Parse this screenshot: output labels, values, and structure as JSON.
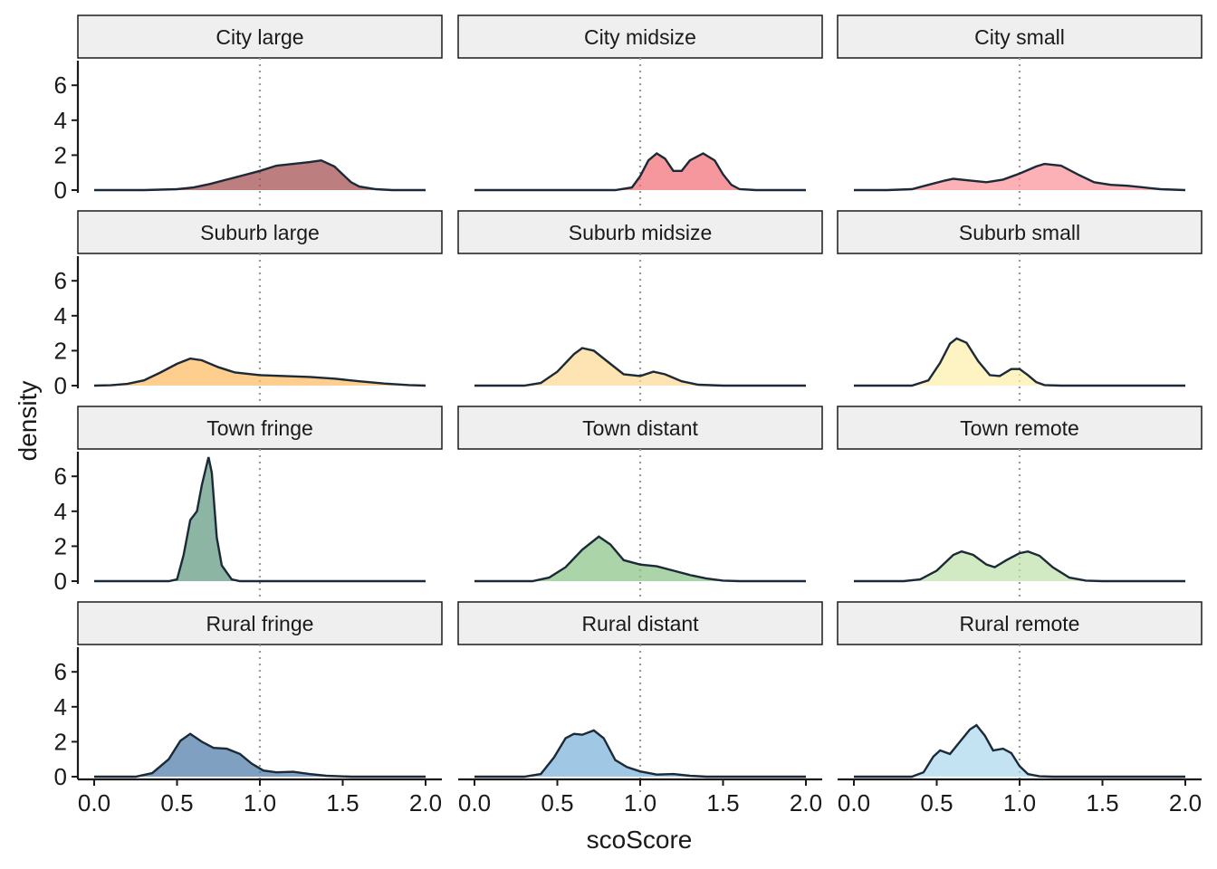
{
  "chart_data": {
    "type": "area",
    "subtype": "faceted density",
    "xlabel": "scoScore",
    "ylabel": "density",
    "xlim": [
      0,
      2
    ],
    "ylim": [
      0,
      7.5
    ],
    "x_ticks": [
      "0.0",
      "0.5",
      "1.0",
      "1.5",
      "2.0"
    ],
    "y_ticks": [
      "0",
      "2",
      "4",
      "6"
    ],
    "reference_line_x": 1.0,
    "facets": [
      {
        "name": "City large",
        "color": "#a04747",
        "points": [
          [
            0,
            0
          ],
          [
            0.3,
            0
          ],
          [
            0.5,
            0.05
          ],
          [
            0.6,
            0.15
          ],
          [
            0.7,
            0.35
          ],
          [
            0.8,
            0.6
          ],
          [
            0.9,
            0.85
          ],
          [
            1.0,
            1.1
          ],
          [
            1.1,
            1.4
          ],
          [
            1.2,
            1.5
          ],
          [
            1.3,
            1.6
          ],
          [
            1.37,
            1.7
          ],
          [
            1.45,
            1.35
          ],
          [
            1.5,
            0.9
          ],
          [
            1.55,
            0.45
          ],
          [
            1.6,
            0.2
          ],
          [
            1.7,
            0.05
          ],
          [
            1.8,
            0
          ],
          [
            2.0,
            0
          ]
        ]
      },
      {
        "name": "City midsize",
        "color": "#f26b73",
        "points": [
          [
            0,
            0
          ],
          [
            0.85,
            0
          ],
          [
            0.95,
            0.15
          ],
          [
            1.0,
            0.8
          ],
          [
            1.05,
            1.7
          ],
          [
            1.1,
            2.1
          ],
          [
            1.15,
            1.8
          ],
          [
            1.2,
            1.1
          ],
          [
            1.25,
            1.1
          ],
          [
            1.3,
            1.7
          ],
          [
            1.38,
            2.1
          ],
          [
            1.45,
            1.7
          ],
          [
            1.5,
            0.9
          ],
          [
            1.55,
            0.3
          ],
          [
            1.6,
            0.05
          ],
          [
            1.7,
            0
          ],
          [
            2.0,
            0
          ]
        ]
      },
      {
        "name": "City small",
        "color": "#fb9099",
        "points": [
          [
            0,
            0
          ],
          [
            0.2,
            0
          ],
          [
            0.35,
            0.05
          ],
          [
            0.45,
            0.3
          ],
          [
            0.55,
            0.55
          ],
          [
            0.6,
            0.65
          ],
          [
            0.7,
            0.55
          ],
          [
            0.8,
            0.45
          ],
          [
            0.9,
            0.6
          ],
          [
            1.0,
            0.95
          ],
          [
            1.1,
            1.35
          ],
          [
            1.15,
            1.5
          ],
          [
            1.25,
            1.4
          ],
          [
            1.35,
            0.9
          ],
          [
            1.45,
            0.45
          ],
          [
            1.55,
            0.3
          ],
          [
            1.65,
            0.25
          ],
          [
            1.75,
            0.15
          ],
          [
            1.85,
            0.05
          ],
          [
            2.0,
            0
          ]
        ]
      },
      {
        "name": "Suburb large",
        "color": "#feb95e",
        "points": [
          [
            0,
            0
          ],
          [
            0.1,
            0.02
          ],
          [
            0.2,
            0.1
          ],
          [
            0.3,
            0.3
          ],
          [
            0.4,
            0.75
          ],
          [
            0.5,
            1.25
          ],
          [
            0.58,
            1.55
          ],
          [
            0.65,
            1.45
          ],
          [
            0.75,
            1.05
          ],
          [
            0.85,
            0.75
          ],
          [
            1.0,
            0.6
          ],
          [
            1.15,
            0.55
          ],
          [
            1.3,
            0.5
          ],
          [
            1.45,
            0.4
          ],
          [
            1.6,
            0.25
          ],
          [
            1.75,
            0.12
          ],
          [
            1.9,
            0.03
          ],
          [
            2.0,
            0
          ]
        ]
      },
      {
        "name": "Suburb midsize",
        "color": "#fed992",
        "points": [
          [
            0,
            0
          ],
          [
            0.3,
            0
          ],
          [
            0.4,
            0.15
          ],
          [
            0.5,
            0.8
          ],
          [
            0.6,
            1.8
          ],
          [
            0.65,
            2.15
          ],
          [
            0.72,
            2.0
          ],
          [
            0.8,
            1.4
          ],
          [
            0.9,
            0.65
          ],
          [
            1.0,
            0.55
          ],
          [
            1.08,
            0.8
          ],
          [
            1.15,
            0.65
          ],
          [
            1.25,
            0.25
          ],
          [
            1.35,
            0.05
          ],
          [
            1.5,
            0
          ],
          [
            2.0,
            0
          ]
        ]
      },
      {
        "name": "Suburb small",
        "color": "#feefaa",
        "points": [
          [
            0,
            0
          ],
          [
            0.35,
            0
          ],
          [
            0.45,
            0.3
          ],
          [
            0.52,
            1.3
          ],
          [
            0.58,
            2.4
          ],
          [
            0.62,
            2.7
          ],
          [
            0.68,
            2.45
          ],
          [
            0.75,
            1.4
          ],
          [
            0.82,
            0.6
          ],
          [
            0.88,
            0.55
          ],
          [
            0.95,
            0.95
          ],
          [
            1.0,
            0.95
          ],
          [
            1.05,
            0.6
          ],
          [
            1.1,
            0.2
          ],
          [
            1.15,
            0.03
          ],
          [
            1.25,
            0
          ],
          [
            2.0,
            0
          ]
        ]
      },
      {
        "name": "Town fringe",
        "color": "#5b957c",
        "points": [
          [
            0,
            0
          ],
          [
            0.45,
            0
          ],
          [
            0.5,
            0.1
          ],
          [
            0.54,
            1.5
          ],
          [
            0.58,
            3.5
          ],
          [
            0.62,
            4.0
          ],
          [
            0.65,
            5.5
          ],
          [
            0.69,
            7.1
          ],
          [
            0.71,
            6.2
          ],
          [
            0.74,
            2.5
          ],
          [
            0.77,
            0.9
          ],
          [
            0.8,
            0.5
          ],
          [
            0.83,
            0.1
          ],
          [
            0.88,
            0
          ],
          [
            2.0,
            0
          ]
        ]
      },
      {
        "name": "Town distant",
        "color": "#87c283",
        "points": [
          [
            0,
            0
          ],
          [
            0.35,
            0
          ],
          [
            0.45,
            0.2
          ],
          [
            0.55,
            0.8
          ],
          [
            0.65,
            1.8
          ],
          [
            0.75,
            2.55
          ],
          [
            0.82,
            2.1
          ],
          [
            0.9,
            1.2
          ],
          [
            1.0,
            0.95
          ],
          [
            1.1,
            0.85
          ],
          [
            1.2,
            0.6
          ],
          [
            1.3,
            0.35
          ],
          [
            1.4,
            0.15
          ],
          [
            1.5,
            0.03
          ],
          [
            1.6,
            0
          ],
          [
            2.0,
            0
          ]
        ]
      },
      {
        "name": "Town remote",
        "color": "#bde1ab",
        "points": [
          [
            0,
            0
          ],
          [
            0.3,
            0
          ],
          [
            0.4,
            0.1
          ],
          [
            0.5,
            0.6
          ],
          [
            0.6,
            1.5
          ],
          [
            0.65,
            1.7
          ],
          [
            0.72,
            1.5
          ],
          [
            0.8,
            0.95
          ],
          [
            0.85,
            0.8
          ],
          [
            0.92,
            1.2
          ],
          [
            1.0,
            1.6
          ],
          [
            1.05,
            1.7
          ],
          [
            1.12,
            1.45
          ],
          [
            1.2,
            0.8
          ],
          [
            1.3,
            0.2
          ],
          [
            1.4,
            0.03
          ],
          [
            1.5,
            0
          ],
          [
            2.0,
            0
          ]
        ]
      },
      {
        "name": "Rural fringe",
        "color": "#4a78a6",
        "points": [
          [
            0,
            0
          ],
          [
            0.25,
            0
          ],
          [
            0.35,
            0.2
          ],
          [
            0.45,
            1.0
          ],
          [
            0.52,
            2.05
          ],
          [
            0.58,
            2.45
          ],
          [
            0.65,
            2.0
          ],
          [
            0.72,
            1.65
          ],
          [
            0.8,
            1.6
          ],
          [
            0.88,
            1.3
          ],
          [
            0.95,
            0.75
          ],
          [
            1.02,
            0.35
          ],
          [
            1.1,
            0.25
          ],
          [
            1.2,
            0.28
          ],
          [
            1.3,
            0.15
          ],
          [
            1.4,
            0.05
          ],
          [
            1.55,
            0
          ],
          [
            2.0,
            0
          ]
        ]
      },
      {
        "name": "Rural distant",
        "color": "#78b0d9",
        "points": [
          [
            0,
            0
          ],
          [
            0.3,
            0
          ],
          [
            0.4,
            0.15
          ],
          [
            0.48,
            1.1
          ],
          [
            0.55,
            2.2
          ],
          [
            0.6,
            2.45
          ],
          [
            0.65,
            2.4
          ],
          [
            0.72,
            2.65
          ],
          [
            0.78,
            2.2
          ],
          [
            0.85,
            0.95
          ],
          [
            0.92,
            0.55
          ],
          [
            1.0,
            0.3
          ],
          [
            1.1,
            0.12
          ],
          [
            1.2,
            0.15
          ],
          [
            1.3,
            0.05
          ],
          [
            1.4,
            0
          ],
          [
            2.0,
            0
          ]
        ]
      },
      {
        "name": "Rural remote",
        "color": "#a9d6ec",
        "points": [
          [
            0,
            0
          ],
          [
            0.35,
            0
          ],
          [
            0.42,
            0.25
          ],
          [
            0.48,
            1.15
          ],
          [
            0.52,
            1.5
          ],
          [
            0.58,
            1.3
          ],
          [
            0.64,
            2.0
          ],
          [
            0.7,
            2.7
          ],
          [
            0.74,
            2.95
          ],
          [
            0.79,
            2.35
          ],
          [
            0.84,
            1.5
          ],
          [
            0.9,
            1.6
          ],
          [
            0.95,
            1.35
          ],
          [
            1.0,
            0.6
          ],
          [
            1.05,
            0.15
          ],
          [
            1.12,
            0.02
          ],
          [
            1.2,
            0
          ],
          [
            2.0,
            0
          ]
        ]
      }
    ]
  }
}
